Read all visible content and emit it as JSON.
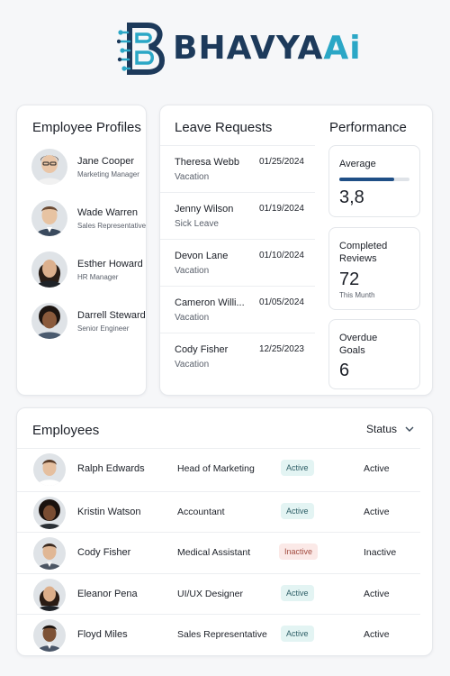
{
  "brand": {
    "name_main": "BHAVYA",
    "name_accent": "Ai"
  },
  "profiles": {
    "title": "Employee Profiles",
    "items": [
      {
        "name": "Jane Cooper",
        "role": "Marketing Manager",
        "avatar": "avatar-icon"
      },
      {
        "name": "Wade Warren",
        "role": "Sales Representative",
        "avatar": "avatar-icon"
      },
      {
        "name": "Esther Howard",
        "role": "HR Manager",
        "avatar": "avatar-icon"
      },
      {
        "name": "Darrell Steward",
        "role": "Senior Engineer",
        "avatar": "avatar-icon"
      }
    ]
  },
  "leave": {
    "title": "Leave Requests",
    "items": [
      {
        "name": "Theresa Webb",
        "date": "01/25/2024",
        "type": "Vacation"
      },
      {
        "name": "Jenny Wilson",
        "date": "01/19/2024",
        "type": "Sick Leave"
      },
      {
        "name": "Devon Lane",
        "date": "01/10/2024",
        "type": "Vacation"
      },
      {
        "name": "Cameron Willi...",
        "date": "01/05/2024",
        "type": "Vacation"
      },
      {
        "name": "Cody Fisher",
        "date": "12/25/2023",
        "type": "Vacation"
      }
    ]
  },
  "performance": {
    "title": "Performance",
    "average": {
      "label": "Average",
      "value": "3,8",
      "progress": 0.78
    },
    "completed": {
      "label_line1": "Completed",
      "label_line2": "Reviews",
      "value": "72",
      "sub": "This Munth"
    },
    "overdue": {
      "label_line1": "Overdue",
      "label_line2": "Goals",
      "value": "6"
    }
  },
  "employees": {
    "title": "Employees",
    "status_filter": "Status",
    "rows": [
      {
        "name": "Ralph Edwards",
        "title": "Head of Marketing",
        "badge": "Active",
        "status": "Active"
      },
      {
        "name": "Kristin Watson",
        "title": "Accountant",
        "badge": "Active",
        "status": "Active"
      },
      {
        "name": "Cody Fisher",
        "title": "Medical Assistant",
        "badge": "Inactive",
        "status": "Inactive"
      },
      {
        "name": "Eleanor Pena",
        "title": "UI/UX Designer",
        "badge": "Active",
        "status": "Active"
      },
      {
        "name": "Floyd Miles",
        "title": "Sales Representative",
        "badge": "Active",
        "status": "Active"
      }
    ]
  },
  "colors": {
    "brand_dark": "#1d3a5b",
    "brand_accent": "#2ba7c6",
    "progress_fill": "#1f4f86",
    "active_badge_bg": "#e3f4f3",
    "inactive_badge_bg": "#fbe9e7"
  }
}
